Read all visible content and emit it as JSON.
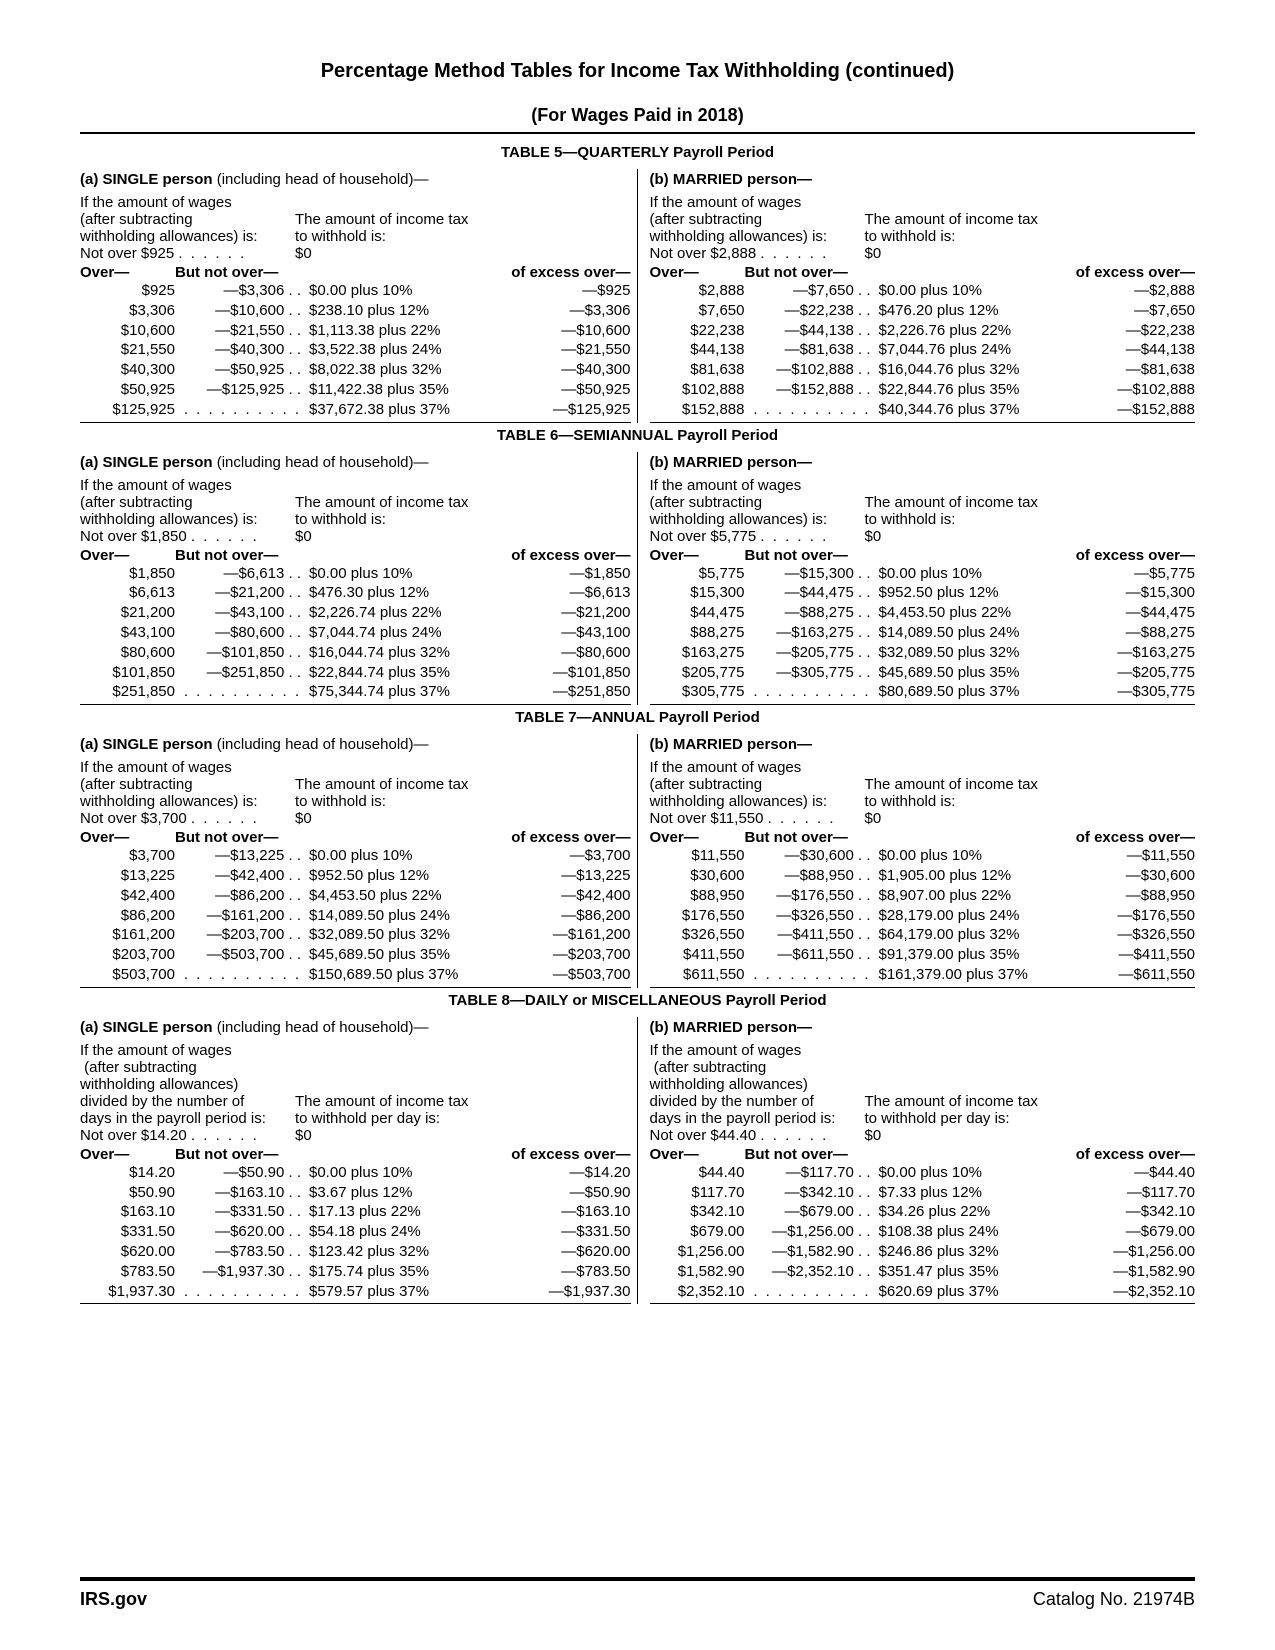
{
  "page_title": "Percentage Method Tables for Income Tax Withholding (continued)",
  "page_subtitle": "(For Wages Paid in 2018)",
  "headers": {
    "over": "Over—",
    "but_not_over": "But not over—",
    "excess_over": "of excess over—"
  },
  "intro": {
    "wages_line": "If the amount of wages",
    "after_sub": "(after subtracting",
    "withholding_is": "withholding allowances) is:",
    "daily_divided": "divided by the number of",
    "daily_days": "days in the payroll period is:",
    "withholding_allow_paren": "withholding allowances)",
    "tax_line1": "The amount of income tax",
    "tax_line2": "to withhold is:",
    "tax_line2_daily": "to withhold per day is:",
    "zero": "$0"
  },
  "group_labels": {
    "single_prefix": "(a) SINGLE person",
    "single_suffix": " (including head of household)—",
    "married_prefix": "(b) MARRIED person—"
  },
  "footer": {
    "left": "IRS.gov",
    "right": "Catalog No. 21974B"
  },
  "tables": [
    {
      "caption": "TABLE 5—QUARTERLY Payroll Period",
      "daily": false,
      "single": {
        "not_over": "Not over $925",
        "rows": [
          {
            "o": "$925",
            "n": "—$3,306",
            "t": "$0.00 plus 10%",
            "x": "—$925"
          },
          {
            "o": "$3,306",
            "n": "—$10,600",
            "t": "$238.10 plus 12%",
            "x": "—$3,306"
          },
          {
            "o": "$10,600",
            "n": "—$21,550",
            "t": "$1,113.38 plus 22%",
            "x": "—$10,600"
          },
          {
            "o": "$21,550",
            "n": "—$40,300",
            "t": "$3,522.38 plus 24%",
            "x": "—$21,550"
          },
          {
            "o": "$40,300",
            "n": "—$50,925",
            "t": "$8,022.38 plus 32%",
            "x": "—$40,300"
          },
          {
            "o": "$50,925",
            "n": "—$125,925",
            "t": "$11,422.38 plus 35%",
            "x": "—$50,925"
          },
          {
            "o": "$125,925",
            "n": "",
            "t": "$37,672.38 plus 37%",
            "x": "—$125,925"
          }
        ]
      },
      "married": {
        "not_over": "Not over $2,888",
        "rows": [
          {
            "o": "$2,888",
            "n": "—$7,650",
            "t": "$0.00 plus 10%",
            "x": "—$2,888"
          },
          {
            "o": "$7,650",
            "n": "—$22,238",
            "t": "$476.20 plus 12%",
            "x": "—$7,650"
          },
          {
            "o": "$22,238",
            "n": "—$44,138",
            "t": "$2,226.76 plus 22%",
            "x": "—$22,238"
          },
          {
            "o": "$44,138",
            "n": "—$81,638",
            "t": "$7,044.76 plus 24%",
            "x": "—$44,138"
          },
          {
            "o": "$81,638",
            "n": "—$102,888",
            "t": "$16,044.76 plus 32%",
            "x": "—$81,638"
          },
          {
            "o": "$102,888",
            "n": "—$152,888",
            "t": "$22,844.76 plus 35%",
            "x": "—$102,888"
          },
          {
            "o": "$152,888",
            "n": "",
            "t": "$40,344.76 plus 37%",
            "x": "—$152,888"
          }
        ]
      }
    },
    {
      "caption": "TABLE 6—SEMIANNUAL Payroll Period",
      "daily": false,
      "single": {
        "not_over": "Not over $1,850",
        "rows": [
          {
            "o": "$1,850",
            "n": "—$6,613",
            "t": "$0.00 plus 10%",
            "x": "—$1,850"
          },
          {
            "o": "$6,613",
            "n": "—$21,200",
            "t": "$476.30 plus 12%",
            "x": "—$6,613"
          },
          {
            "o": "$21,200",
            "n": "—$43,100",
            "t": "$2,226.74 plus 22%",
            "x": "—$21,200"
          },
          {
            "o": "$43,100",
            "n": "—$80,600",
            "t": "$7,044.74 plus 24%",
            "x": "—$43,100"
          },
          {
            "o": "$80,600",
            "n": "—$101,850",
            "t": "$16,044.74 plus 32%",
            "x": "—$80,600"
          },
          {
            "o": "$101,850",
            "n": "—$251,850",
            "t": "$22,844.74 plus 35%",
            "x": "—$101,850"
          },
          {
            "o": "$251,850",
            "n": "",
            "t": "$75,344.74 plus 37%",
            "x": "—$251,850"
          }
        ]
      },
      "married": {
        "not_over": "Not over $5,775",
        "rows": [
          {
            "o": "$5,775",
            "n": "—$15,300",
            "t": "$0.00 plus 10%",
            "x": "—$5,775"
          },
          {
            "o": "$15,300",
            "n": "—$44,475",
            "t": "$952.50 plus 12%",
            "x": "—$15,300"
          },
          {
            "o": "$44,475",
            "n": "—$88,275",
            "t": "$4,453.50 plus 22%",
            "x": "—$44,475"
          },
          {
            "o": "$88,275",
            "n": "—$163,275",
            "t": "$14,089.50 plus 24%",
            "x": "—$88,275"
          },
          {
            "o": "$163,275",
            "n": "—$205,775",
            "t": "$32,089.50 plus 32%",
            "x": "—$163,275"
          },
          {
            "o": "$205,775",
            "n": "—$305,775",
            "t": "$45,689.50 plus 35%",
            "x": "—$205,775"
          },
          {
            "o": "$305,775",
            "n": "",
            "t": "$80,689.50 plus 37%",
            "x": "—$305,775"
          }
        ]
      }
    },
    {
      "caption": "TABLE 7—ANNUAL Payroll Period",
      "daily": false,
      "single": {
        "not_over": "Not over $3,700",
        "rows": [
          {
            "o": "$3,700",
            "n": "—$13,225",
            "t": "$0.00 plus 10%",
            "x": "—$3,700"
          },
          {
            "o": "$13,225",
            "n": "—$42,400",
            "t": "$952.50 plus 12%",
            "x": "—$13,225"
          },
          {
            "o": "$42,400",
            "n": "—$86,200",
            "t": "$4,453.50 plus 22%",
            "x": "—$42,400"
          },
          {
            "o": "$86,200",
            "n": "—$161,200",
            "t": "$14,089.50 plus 24%",
            "x": "—$86,200"
          },
          {
            "o": "$161,200",
            "n": "—$203,700",
            "t": "$32,089.50 plus 32%",
            "x": "—$161,200"
          },
          {
            "o": "$203,700",
            "n": "—$503,700",
            "t": "$45,689.50 plus 35%",
            "x": "—$203,700"
          },
          {
            "o": "$503,700",
            "n": "",
            "t": "$150,689.50 plus 37%",
            "x": "—$503,700"
          }
        ]
      },
      "married": {
        "not_over": "Not over $11,550",
        "rows": [
          {
            "o": "$11,550",
            "n": "—$30,600",
            "t": "$0.00 plus 10%",
            "x": "—$11,550"
          },
          {
            "o": "$30,600",
            "n": "—$88,950",
            "t": "$1,905.00 plus 12%",
            "x": "—$30,600"
          },
          {
            "o": "$88,950",
            "n": "—$176,550",
            "t": "$8,907.00 plus 22%",
            "x": "—$88,950"
          },
          {
            "o": "$176,550",
            "n": "—$326,550",
            "t": "$28,179.00 plus 24%",
            "x": "—$176,550"
          },
          {
            "o": "$326,550",
            "n": "—$411,550",
            "t": "$64,179.00 plus 32%",
            "x": "—$326,550"
          },
          {
            "o": "$411,550",
            "n": "—$611,550",
            "t": "$91,379.00 plus 35%",
            "x": "—$411,550"
          },
          {
            "o": "$611,550",
            "n": "",
            "t": "$161,379.00 plus 37%",
            "x": "—$611,550"
          }
        ]
      }
    },
    {
      "caption": "TABLE 8—DAILY or MISCELLANEOUS Payroll Period",
      "daily": true,
      "single": {
        "not_over": "Not over $14.20",
        "rows": [
          {
            "o": "$14.20",
            "n": "—$50.90",
            "t": "$0.00 plus 10%",
            "x": "—$14.20"
          },
          {
            "o": "$50.90",
            "n": "—$163.10",
            "t": "$3.67 plus 12%",
            "x": "—$50.90"
          },
          {
            "o": "$163.10",
            "n": "—$331.50",
            "t": "$17.13 plus 22%",
            "x": "—$163.10"
          },
          {
            "o": "$331.50",
            "n": "—$620.00",
            "t": "$54.18 plus 24%",
            "x": "—$331.50"
          },
          {
            "o": "$620.00",
            "n": "—$783.50",
            "t": "$123.42 plus 32%",
            "x": "—$620.00"
          },
          {
            "o": "$783.50",
            "n": "—$1,937.30",
            "t": "$175.74 plus 35%",
            "x": "—$783.50"
          },
          {
            "o": "$1,937.30",
            "n": "",
            "t": "$579.57 plus 37%",
            "x": "—$1,937.30"
          }
        ]
      },
      "married": {
        "not_over": "Not over $44.40",
        "rows": [
          {
            "o": "$44.40",
            "n": "—$117.70",
            "t": "$0.00 plus 10%",
            "x": "—$44.40"
          },
          {
            "o": "$117.70",
            "n": "—$342.10",
            "t": "$7.33 plus 12%",
            "x": "—$117.70"
          },
          {
            "o": "$342.10",
            "n": "—$679.00",
            "t": "$34.26 plus 22%",
            "x": "—$342.10"
          },
          {
            "o": "$679.00",
            "n": "—$1,256.00",
            "t": "$108.38 plus 24%",
            "x": "—$679.00"
          },
          {
            "o": "$1,256.00",
            "n": "—$1,582.90",
            "t": "$246.86 plus 32%",
            "x": "—$1,256.00"
          },
          {
            "o": "$1,582.90",
            "n": "—$2,352.10",
            "t": "$351.47 plus 35%",
            "x": "—$1,582.90"
          },
          {
            "o": "$2,352.10",
            "n": "",
            "t": "$620.69 plus 37%",
            "x": "—$2,352.10"
          }
        ]
      }
    }
  ]
}
